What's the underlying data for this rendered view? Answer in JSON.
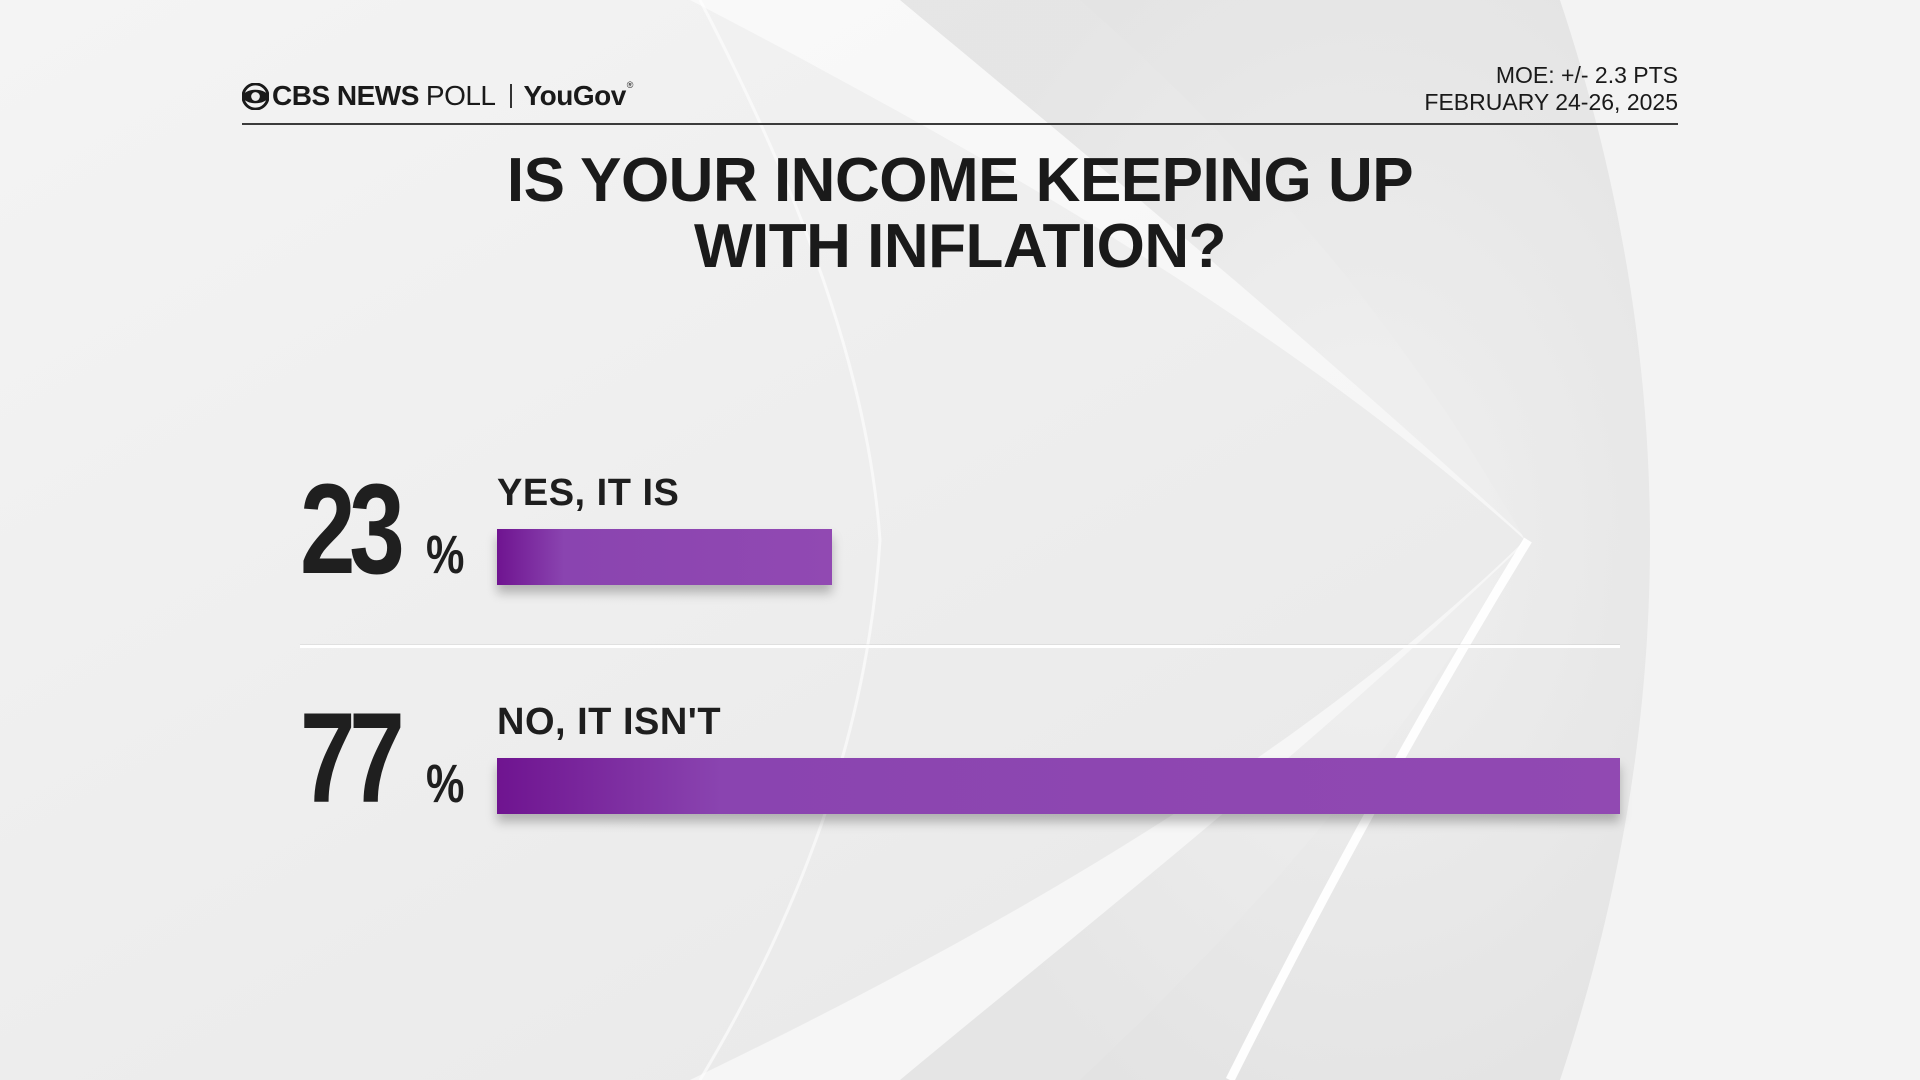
{
  "brand": {
    "cbs": "CBS NEWS",
    "poll": "POLL",
    "partner": "YouGov",
    "partner_mark": "®",
    "logo_icon": "cbs-eye-icon"
  },
  "meta": {
    "moe": "MOE: +/- 2.3 PTS",
    "dates": "FEBRUARY 24-26, 2025"
  },
  "chart_data": {
    "type": "bar",
    "orientation": "horizontal",
    "title": "IS YOUR INCOME KEEPING UP WITH INFLATION?",
    "title_lines": [
      "IS YOUR INCOME KEEPING UP",
      "WITH INFLATION?"
    ],
    "categories": [
      "YES, IT IS",
      "NO, IT ISN'T"
    ],
    "values": [
      23,
      77
    ],
    "value_labels": [
      "23",
      "77"
    ],
    "unit": "%",
    "xlim": [
      0,
      77
    ],
    "grid": false,
    "legend": "none",
    "bar_color": "#8e47b1",
    "bar_color_dark": "#6f1490"
  }
}
